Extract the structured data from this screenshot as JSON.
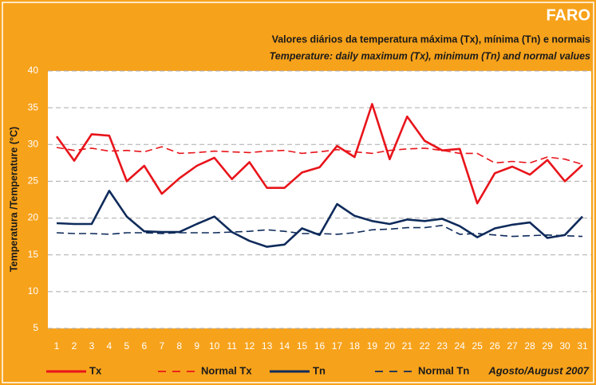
{
  "chart_data": {
    "type": "line",
    "title": "FARO",
    "subtitle": "Valores diários da temperatura máxima (Tx), mínima (Tn) e normais",
    "subtitle_en": "Temperature: daily maximum  (Tx), minimum (Tn) and  normal values",
    "ylabel": "Temperatura /Temperature (°C)",
    "note": "Agosto/August 2007",
    "categories": [
      1,
      2,
      3,
      4,
      5,
      6,
      7,
      8,
      9,
      10,
      11,
      12,
      13,
      14,
      15,
      16,
      17,
      18,
      19,
      20,
      21,
      22,
      23,
      24,
      25,
      26,
      27,
      28,
      29,
      30,
      31
    ],
    "series": [
      {
        "name": "Tx",
        "color": "#e8141b",
        "dash": false,
        "values": [
          31.1,
          27.8,
          31.4,
          31.2,
          25.0,
          27.1,
          23.3,
          25.4,
          27.1,
          28.2,
          25.3,
          27.6,
          24.1,
          24.1,
          26.2,
          26.9,
          29.8,
          28.3,
          35.5,
          28.0,
          33.8,
          30.5,
          29.2,
          29.4,
          22.0,
          26.1,
          27.0,
          25.9,
          27.9,
          25.0,
          27.2
        ]
      },
      {
        "name": "Normal Tx",
        "color": "#e8141b",
        "dash": true,
        "values": [
          29.6,
          29.2,
          29.5,
          29.1,
          29.2,
          29.0,
          29.7,
          28.8,
          28.9,
          29.1,
          29.0,
          28.9,
          29.1,
          29.2,
          28.8,
          29.0,
          29.3,
          29.0,
          28.8,
          29.2,
          29.4,
          29.5,
          29.2,
          28.8,
          28.8,
          27.5,
          27.7,
          27.5,
          28.3,
          28.0,
          27.3
        ]
      },
      {
        "name": "Tn",
        "color": "#0f2b5b",
        "dash": false,
        "values": [
          19.3,
          19.2,
          19.2,
          23.7,
          20.2,
          18.2,
          18.1,
          18.1,
          19.2,
          20.2,
          18.1,
          16.9,
          16.1,
          16.4,
          18.6,
          17.7,
          21.9,
          20.3,
          19.6,
          19.2,
          19.8,
          19.6,
          19.9,
          18.9,
          17.4,
          18.6,
          19.1,
          19.4,
          17.3,
          17.7,
          20.2
        ]
      },
      {
        "name": "Normal Tn",
        "color": "#0f2b5b",
        "dash": true,
        "values": [
          18.0,
          17.9,
          17.9,
          17.8,
          18.0,
          18.0,
          17.9,
          18.0,
          18.0,
          18.0,
          18.1,
          18.2,
          18.4,
          18.2,
          17.9,
          17.9,
          17.8,
          18.0,
          18.4,
          18.5,
          18.7,
          18.7,
          19.0,
          17.8,
          17.9,
          17.7,
          17.5,
          17.6,
          17.7,
          17.6,
          17.5
        ]
      }
    ],
    "ylim": [
      5,
      40
    ],
    "yticks": [
      5,
      10,
      15,
      20,
      25,
      30,
      35,
      40
    ],
    "grid": true
  }
}
